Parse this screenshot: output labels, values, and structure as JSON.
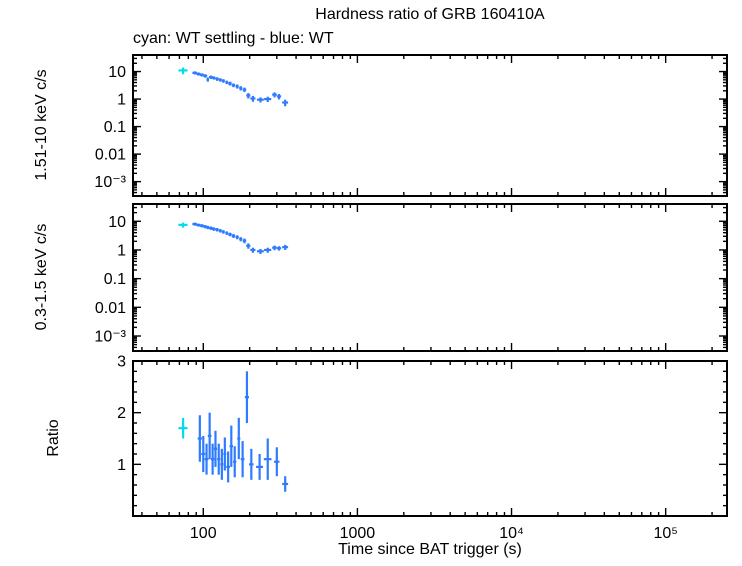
{
  "title": "Hardness ratio of GRB 160410A",
  "legend_note": "cyan: WT settling - blue: WT",
  "colors": {
    "settling_cyan": "#00dcee",
    "wt_blue": "#2e7bff",
    "axis": "#000000",
    "background": "#ffffff"
  },
  "x_axis": {
    "label": "Time since BAT trigger (s)",
    "scale": "log",
    "lim": [
      35,
      250000
    ],
    "ticks": [
      {
        "v": 100,
        "label": "100"
      },
      {
        "v": 1000,
        "label": "1000"
      },
      {
        "v": 10000,
        "label": "10⁴"
      },
      {
        "v": 100000,
        "label": "10⁵"
      }
    ]
  },
  "chart_data": [
    {
      "type": "scatter",
      "name": "hard-band",
      "ylabel": "1.51-10 keV c/s",
      "yscale": "log",
      "ylim": [
        0.0003,
        40
      ],
      "grid": false,
      "yticks": [
        {
          "v": 10,
          "label": "10"
        },
        {
          "v": 1,
          "label": "1"
        },
        {
          "v": 0.1,
          "label": "0.1"
        },
        {
          "v": 0.01,
          "label": "0.01"
        },
        {
          "v": 0.001,
          "label": "10⁻³"
        }
      ],
      "series": [
        {
          "name": "WT settling",
          "color": "settling_cyan",
          "points": [
            [
              74,
              11,
              5,
              3
            ]
          ]
        },
        {
          "name": "WT",
          "color": "wt_blue",
          "points": [
            [
              88,
              9.0,
              3,
              1.2
            ],
            [
              93,
              8.2,
              3,
              1.1
            ],
            [
              98,
              7.6,
              3,
              1.0
            ],
            [
              103,
              7.0,
              3,
              1.0
            ],
            [
              107,
              5.2,
              2,
              0.9
            ],
            [
              112,
              6.3,
              3,
              0.9
            ],
            [
              117,
              5.9,
              3,
              0.8
            ],
            [
              123,
              5.4,
              3,
              0.8
            ],
            [
              129,
              5.0,
              3,
              0.7
            ],
            [
              135,
              4.6,
              3,
              0.7
            ],
            [
              142,
              4.1,
              3,
              0.6
            ],
            [
              149,
              3.7,
              4,
              0.6
            ],
            [
              157,
              3.2,
              4,
              0.5
            ],
            [
              166,
              2.9,
              4,
              0.5
            ],
            [
              175,
              2.5,
              4,
              0.45
            ],
            [
              185,
              2.2,
              5,
              0.4
            ],
            [
              196,
              1.35,
              6,
              0.3
            ],
            [
              210,
              1.05,
              8,
              0.25
            ],
            [
              235,
              0.95,
              12,
              0.2
            ],
            [
              262,
              1.0,
              14,
              0.22
            ],
            [
              290,
              1.45,
              10,
              0.3
            ],
            [
              310,
              1.25,
              10,
              0.28
            ],
            [
              340,
              0.75,
              15,
              0.2
            ]
          ]
        }
      ]
    },
    {
      "type": "scatter",
      "name": "soft-band",
      "ylabel": "0.3-1.5 keV c/s",
      "yscale": "log",
      "ylim": [
        0.0003,
        40
      ],
      "grid": false,
      "yticks": [
        {
          "v": 10,
          "label": "10"
        },
        {
          "v": 1,
          "label": "1"
        },
        {
          "v": 0.1,
          "label": "0.1"
        },
        {
          "v": 0.01,
          "label": "0.01"
        },
        {
          "v": 0.001,
          "label": "10⁻³"
        }
      ],
      "series": [
        {
          "name": "WT settling",
          "color": "settling_cyan",
          "points": [
            [
              74,
              7.5,
              5,
              1.5
            ]
          ]
        },
        {
          "name": "WT",
          "color": "wt_blue",
          "points": [
            [
              88,
              8.0,
              3,
              1.0
            ],
            [
              93,
              7.4,
              3,
              0.9
            ],
            [
              98,
              7.0,
              3,
              0.9
            ],
            [
              103,
              6.5,
              3,
              0.85
            ],
            [
              107,
              6.1,
              2,
              0.8
            ],
            [
              112,
              5.8,
              3,
              0.8
            ],
            [
              117,
              5.4,
              3,
              0.75
            ],
            [
              123,
              5.1,
              3,
              0.7
            ],
            [
              129,
              4.7,
              3,
              0.65
            ],
            [
              135,
              4.3,
              3,
              0.6
            ],
            [
              142,
              3.9,
              3,
              0.55
            ],
            [
              149,
              3.5,
              4,
              0.5
            ],
            [
              157,
              3.1,
              4,
              0.5
            ],
            [
              166,
              2.8,
              4,
              0.45
            ],
            [
              175,
              2.4,
              4,
              0.4
            ],
            [
              185,
              2.1,
              5,
              0.4
            ],
            [
              196,
              1.4,
              6,
              0.3
            ],
            [
              210,
              1.0,
              8,
              0.2
            ],
            [
              235,
              0.9,
              12,
              0.18
            ],
            [
              262,
              1.0,
              14,
              0.2
            ],
            [
              290,
              1.2,
              10,
              0.22
            ],
            [
              310,
              1.15,
              10,
              0.2
            ],
            [
              340,
              1.25,
              15,
              0.25
            ]
          ]
        }
      ]
    },
    {
      "type": "scatter",
      "name": "ratio",
      "ylabel": "Ratio",
      "yscale": "linear",
      "ylim": [
        0,
        3
      ],
      "minor_step": 0.2,
      "grid": false,
      "yticks": [
        {
          "v": 1,
          "label": "1"
        },
        {
          "v": 2,
          "label": "2"
        },
        {
          "v": 3,
          "label": "3"
        }
      ],
      "series": [
        {
          "name": "WT settling",
          "color": "settling_cyan",
          "points": [
            [
              74,
              1.7,
              5,
              0.2
            ]
          ]
        },
        {
          "name": "WT",
          "color": "wt_blue",
          "points": [
            [
              95,
              1.5,
              3,
              0.45
            ],
            [
              100,
              1.2,
              3,
              0.35
            ],
            [
              105,
              1.1,
              3,
              0.3
            ],
            [
              110,
              1.55,
              3,
              0.45
            ],
            [
              115,
              1.1,
              3,
              0.3
            ],
            [
              120,
              1.3,
              3,
              0.35
            ],
            [
              126,
              1.1,
              3,
              0.3
            ],
            [
              132,
              1.0,
              3,
              0.3
            ],
            [
              138,
              1.2,
              3,
              0.32
            ],
            [
              145,
              0.95,
              4,
              0.3
            ],
            [
              152,
              1.35,
              4,
              0.4
            ],
            [
              160,
              1.05,
              4,
              0.3
            ],
            [
              170,
              1.5,
              4,
              0.4
            ],
            [
              180,
              1.1,
              5,
              0.35
            ],
            [
              192,
              2.3,
              6,
              0.5
            ],
            [
              205,
              1.0,
              7,
              0.3
            ],
            [
              232,
              0.95,
              12,
              0.25
            ],
            [
              262,
              1.1,
              15,
              0.4
            ],
            [
              300,
              1.05,
              12,
              0.28
            ],
            [
              340,
              0.62,
              15,
              0.15
            ]
          ]
        }
      ]
    }
  ]
}
